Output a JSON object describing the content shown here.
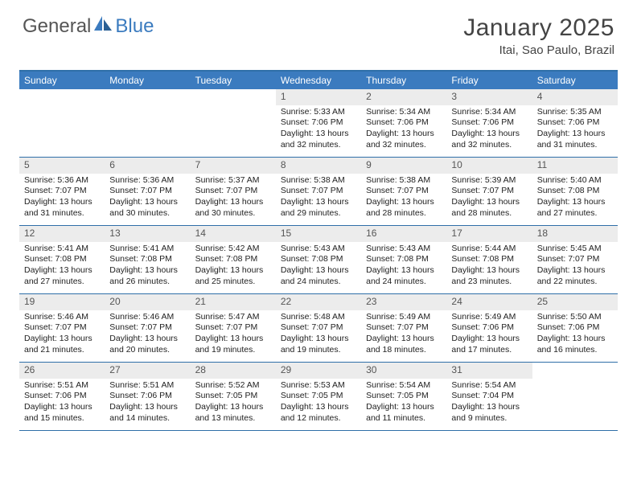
{
  "logo": {
    "text1": "General",
    "text2": "Blue"
  },
  "title": "January 2025",
  "location": "Itai, Sao Paulo, Brazil",
  "colors": {
    "header_bg": "#3b7bbf",
    "border": "#2f6fa8",
    "daynum_bg": "#ececec",
    "text": "#333333",
    "logo_gray": "#555555"
  },
  "weekdays": [
    "Sunday",
    "Monday",
    "Tuesday",
    "Wednesday",
    "Thursday",
    "Friday",
    "Saturday"
  ],
  "weeks": [
    [
      {
        "n": "",
        "t": ""
      },
      {
        "n": "",
        "t": ""
      },
      {
        "n": "",
        "t": ""
      },
      {
        "n": "1",
        "t": "Sunrise: 5:33 AM\nSunset: 7:06 PM\nDaylight: 13 hours and 32 minutes."
      },
      {
        "n": "2",
        "t": "Sunrise: 5:34 AM\nSunset: 7:06 PM\nDaylight: 13 hours and 32 minutes."
      },
      {
        "n": "3",
        "t": "Sunrise: 5:34 AM\nSunset: 7:06 PM\nDaylight: 13 hours and 32 minutes."
      },
      {
        "n": "4",
        "t": "Sunrise: 5:35 AM\nSunset: 7:06 PM\nDaylight: 13 hours and 31 minutes."
      }
    ],
    [
      {
        "n": "5",
        "t": "Sunrise: 5:36 AM\nSunset: 7:07 PM\nDaylight: 13 hours and 31 minutes."
      },
      {
        "n": "6",
        "t": "Sunrise: 5:36 AM\nSunset: 7:07 PM\nDaylight: 13 hours and 30 minutes."
      },
      {
        "n": "7",
        "t": "Sunrise: 5:37 AM\nSunset: 7:07 PM\nDaylight: 13 hours and 30 minutes."
      },
      {
        "n": "8",
        "t": "Sunrise: 5:38 AM\nSunset: 7:07 PM\nDaylight: 13 hours and 29 minutes."
      },
      {
        "n": "9",
        "t": "Sunrise: 5:38 AM\nSunset: 7:07 PM\nDaylight: 13 hours and 28 minutes."
      },
      {
        "n": "10",
        "t": "Sunrise: 5:39 AM\nSunset: 7:07 PM\nDaylight: 13 hours and 28 minutes."
      },
      {
        "n": "11",
        "t": "Sunrise: 5:40 AM\nSunset: 7:08 PM\nDaylight: 13 hours and 27 minutes."
      }
    ],
    [
      {
        "n": "12",
        "t": "Sunrise: 5:41 AM\nSunset: 7:08 PM\nDaylight: 13 hours and 27 minutes."
      },
      {
        "n": "13",
        "t": "Sunrise: 5:41 AM\nSunset: 7:08 PM\nDaylight: 13 hours and 26 minutes."
      },
      {
        "n": "14",
        "t": "Sunrise: 5:42 AM\nSunset: 7:08 PM\nDaylight: 13 hours and 25 minutes."
      },
      {
        "n": "15",
        "t": "Sunrise: 5:43 AM\nSunset: 7:08 PM\nDaylight: 13 hours and 24 minutes."
      },
      {
        "n": "16",
        "t": "Sunrise: 5:43 AM\nSunset: 7:08 PM\nDaylight: 13 hours and 24 minutes."
      },
      {
        "n": "17",
        "t": "Sunrise: 5:44 AM\nSunset: 7:08 PM\nDaylight: 13 hours and 23 minutes."
      },
      {
        "n": "18",
        "t": "Sunrise: 5:45 AM\nSunset: 7:07 PM\nDaylight: 13 hours and 22 minutes."
      }
    ],
    [
      {
        "n": "19",
        "t": "Sunrise: 5:46 AM\nSunset: 7:07 PM\nDaylight: 13 hours and 21 minutes."
      },
      {
        "n": "20",
        "t": "Sunrise: 5:46 AM\nSunset: 7:07 PM\nDaylight: 13 hours and 20 minutes."
      },
      {
        "n": "21",
        "t": "Sunrise: 5:47 AM\nSunset: 7:07 PM\nDaylight: 13 hours and 19 minutes."
      },
      {
        "n": "22",
        "t": "Sunrise: 5:48 AM\nSunset: 7:07 PM\nDaylight: 13 hours and 19 minutes."
      },
      {
        "n": "23",
        "t": "Sunrise: 5:49 AM\nSunset: 7:07 PM\nDaylight: 13 hours and 18 minutes."
      },
      {
        "n": "24",
        "t": "Sunrise: 5:49 AM\nSunset: 7:06 PM\nDaylight: 13 hours and 17 minutes."
      },
      {
        "n": "25",
        "t": "Sunrise: 5:50 AM\nSunset: 7:06 PM\nDaylight: 13 hours and 16 minutes."
      }
    ],
    [
      {
        "n": "26",
        "t": "Sunrise: 5:51 AM\nSunset: 7:06 PM\nDaylight: 13 hours and 15 minutes."
      },
      {
        "n": "27",
        "t": "Sunrise: 5:51 AM\nSunset: 7:06 PM\nDaylight: 13 hours and 14 minutes."
      },
      {
        "n": "28",
        "t": "Sunrise: 5:52 AM\nSunset: 7:05 PM\nDaylight: 13 hours and 13 minutes."
      },
      {
        "n": "29",
        "t": "Sunrise: 5:53 AM\nSunset: 7:05 PM\nDaylight: 13 hours and 12 minutes."
      },
      {
        "n": "30",
        "t": "Sunrise: 5:54 AM\nSunset: 7:05 PM\nDaylight: 13 hours and 11 minutes."
      },
      {
        "n": "31",
        "t": "Sunrise: 5:54 AM\nSunset: 7:04 PM\nDaylight: 13 hours and 9 minutes."
      },
      {
        "n": "",
        "t": ""
      }
    ]
  ]
}
